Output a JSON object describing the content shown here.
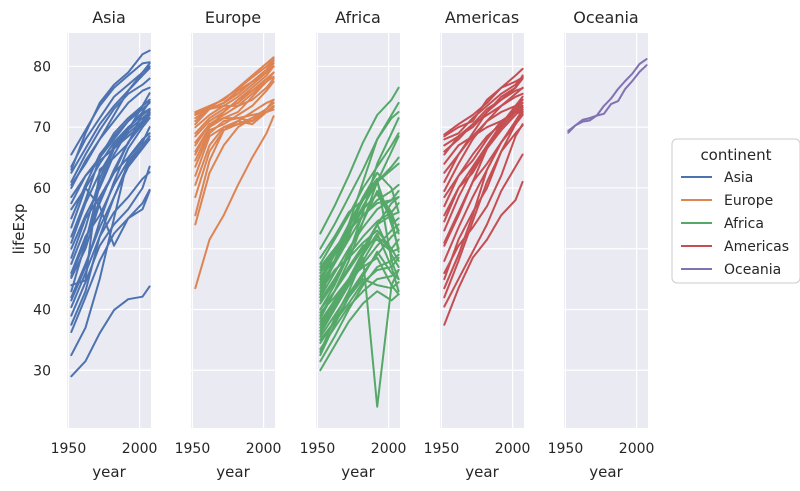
{
  "chart_data": {
    "type": "line",
    "facet_by": "continent",
    "xlabel": "year",
    "ylabel": "lifeExp",
    "xlim": [
      1949,
      2008
    ],
    "ylim": [
      20.5,
      85.5
    ],
    "xticks": [
      1950,
      2000
    ],
    "yticks": [
      30,
      40,
      50,
      60,
      70,
      80
    ],
    "legend": {
      "title": "continent",
      "position": "right",
      "entries": [
        "Asia",
        "Europe",
        "Africa",
        "Americas",
        "Oceania"
      ]
    },
    "panels": [
      {
        "title": "Asia",
        "color": "#4c72b0",
        "x": [
          1952,
          1962,
          1972,
          1982,
          1992,
          2002,
          2007
        ],
        "series": [
          [
            29,
            31.5,
            36.1,
            39.9,
            41.7,
            42.1,
            43.8
          ],
          [
            32.5,
            37,
            45,
            55,
            65,
            68,
            69
          ],
          [
            36.3,
            42,
            48,
            52.5,
            55,
            57.5,
            59.7
          ],
          [
            37.5,
            43,
            52,
            58.5,
            64,
            67,
            68.5
          ],
          [
            39,
            44.5,
            50.5,
            54,
            56.5,
            60,
            63.5
          ],
          [
            40.4,
            46,
            52,
            56,
            58.5,
            61.5,
            62.6
          ],
          [
            41.5,
            47,
            54.5,
            61,
            66.5,
            70,
            71.5
          ],
          [
            43,
            51,
            60.5,
            66.5,
            69.5,
            71.5,
            72.5
          ],
          [
            44,
            44.8,
            63,
            65,
            67.3,
            72.3,
            73
          ],
          [
            45.2,
            50,
            57.5,
            63,
            67.5,
            70.5,
            72
          ],
          [
            46,
            52,
            55.5,
            60.5,
            64.5,
            67,
            68.5
          ],
          [
            47.5,
            53.5,
            61.5,
            67,
            69.8,
            72.5,
            74.2
          ],
          [
            48.5,
            55,
            58.5,
            62.5,
            65,
            67.5,
            70
          ],
          [
            50,
            55.5,
            60,
            65.5,
            69.5,
            73.5,
            75.6
          ],
          [
            51,
            57.5,
            62.5,
            66.5,
            69,
            71,
            72.8
          ],
          [
            52,
            58,
            65,
            69,
            71.5,
            73.5,
            74.5
          ],
          [
            53.5,
            60,
            64,
            67.5,
            70,
            72,
            73
          ],
          [
            55,
            60.5,
            65.5,
            68.5,
            71,
            73,
            74
          ],
          [
            56.5,
            60,
            57,
            50.5,
            55,
            56.5,
            59.5
          ],
          [
            57.5,
            62,
            65,
            68,
            71,
            73.5,
            74.5
          ],
          [
            58.5,
            62,
            64.5,
            66.5,
            68.5,
            70.5,
            72.3
          ],
          [
            60,
            64.5,
            68,
            71,
            74,
            76,
            76.5
          ],
          [
            61,
            65.5,
            69.5,
            73,
            75.5,
            77,
            78
          ],
          [
            62.5,
            66.5,
            70.5,
            73.5,
            76,
            78.5,
            79.7
          ],
          [
            63.5,
            68,
            71.5,
            75,
            77,
            79,
            80
          ],
          [
            65.5,
            69.5,
            73.5,
            76.5,
            78.5,
            80.5,
            80.7
          ],
          [
            63,
            69,
            74,
            77,
            79,
            82,
            82.6
          ],
          [
            60.5,
            64,
            68,
            72,
            76,
            79,
            80.5
          ],
          [
            45.5,
            51.5,
            58,
            62.5,
            67.5,
            71,
            72.4
          ],
          [
            42,
            47.5,
            53.5,
            58.5,
            63.5,
            66.5,
            68
          ]
        ]
      },
      {
        "title": "Europe",
        "color": "#dd8452",
        "x": [
          1952,
          1962,
          1972,
          1982,
          1992,
          2002,
          2007
        ],
        "series": [
          [
            43.5,
            51.5,
            55.5,
            60.5,
            65,
            69,
            71.8
          ],
          [
            54,
            62.5,
            67,
            70,
            71.5,
            73,
            74
          ],
          [
            55.5,
            64.5,
            69.5,
            71,
            72.5,
            74,
            74.5
          ],
          [
            58.5,
            66,
            69.5,
            70.5,
            71.5,
            73,
            74
          ],
          [
            60.5,
            67,
            70,
            71,
            70.5,
            72.5,
            73.3
          ],
          [
            62,
            68.5,
            70,
            70.5,
            71,
            72.5,
            73.5
          ],
          [
            63.5,
            69,
            71,
            71.5,
            72,
            72.5,
            72.9
          ],
          [
            64.5,
            69.5,
            70.5,
            72,
            73.5,
            76,
            77.5
          ],
          [
            65.5,
            70,
            71.5,
            72.5,
            75,
            77.5,
            79
          ],
          [
            66,
            70,
            72.5,
            74.5,
            76,
            77.5,
            78.3
          ],
          [
            67,
            70.5,
            72,
            73.5,
            75.5,
            77.5,
            79
          ],
          [
            67.5,
            70.5,
            71.5,
            71.5,
            71,
            73,
            74.5
          ],
          [
            68.5,
            71,
            72.5,
            74.5,
            76.5,
            78.5,
            80
          ],
          [
            69,
            71.5,
            73,
            74,
            76,
            78,
            79
          ],
          [
            70,
            72,
            73.5,
            75,
            77,
            79,
            80
          ],
          [
            70.5,
            73,
            73.5,
            73.5,
            74.5,
            76.5,
            78
          ],
          [
            71,
            73,
            74,
            75.5,
            77.5,
            79,
            80
          ],
          [
            71.5,
            73,
            74,
            75.5,
            77.5,
            79,
            80.5
          ],
          [
            72,
            73,
            74,
            76,
            77.5,
            79.5,
            80.9
          ],
          [
            72.5,
            73.5,
            74.5,
            76.5,
            78.5,
            80.5,
            81.5
          ],
          [
            72.2,
            73.2,
            74.7,
            76.3,
            78.2,
            80,
            81.2
          ]
        ]
      },
      {
        "title": "Africa",
        "color": "#55a868",
        "x": [
          1952,
          1962,
          1972,
          1982,
          1992,
          2002,
          2007
        ],
        "series": [
          [
            30,
            34,
            38,
            41,
            43,
            41.5,
            42.5
          ],
          [
            31.5,
            35.5,
            40,
            44,
            47,
            48,
            49
          ],
          [
            32.5,
            37.5,
            42,
            45.5,
            49.5,
            46,
            45
          ],
          [
            33.5,
            37,
            40.5,
            43,
            45,
            45.5,
            46.5
          ],
          [
            34.5,
            38,
            41,
            44.5,
            46.5,
            47,
            48.5
          ],
          [
            35,
            38,
            42,
            45,
            44,
            43.5,
            44.5
          ],
          [
            36,
            40,
            44,
            48,
            52,
            50,
            48
          ],
          [
            37.5,
            41,
            44.5,
            49,
            52.5,
            47,
            43
          ],
          [
            38,
            41.5,
            45,
            49.5,
            54,
            49,
            47
          ],
          [
            39,
            43,
            47,
            50.5,
            51.5,
            49.5,
            50
          ],
          [
            40,
            43,
            46.5,
            50,
            54,
            55.5,
            56
          ],
          [
            41,
            44.5,
            49.5,
            54.5,
            59.5,
            56,
            52.5
          ],
          [
            42,
            46,
            50,
            53.5,
            56.5,
            58,
            59.5
          ],
          [
            43,
            46.5,
            48.5,
            51,
            53,
            50,
            51.5
          ],
          [
            44,
            48,
            52.5,
            56.5,
            59,
            55.5,
            53
          ],
          [
            45.5,
            48,
            52.5,
            57,
            61,
            63,
            64
          ],
          [
            46,
            49,
            52.5,
            57,
            61,
            63.5,
            65
          ],
          [
            47.5,
            51.5,
            55.5,
            60,
            63.5,
            67,
            69
          ],
          [
            48.5,
            52,
            56,
            58,
            61,
            54,
            50
          ],
          [
            50,
            54,
            58.5,
            63,
            68,
            71.5,
            72.5
          ],
          [
            52.5,
            57,
            62,
            67.5,
            72,
            74.5,
            76.5
          ],
          [
            42,
            48,
            54,
            61,
            68,
            72,
            74
          ],
          [
            40,
            44,
            49,
            56,
            64,
            69,
            71.5
          ],
          [
            38.5,
            43,
            48,
            54.5,
            61,
            66,
            68.5
          ],
          [
            36.5,
            40.5,
            44,
            49,
            54,
            57.5,
            58.5
          ],
          [
            44.5,
            49,
            53.5,
            58,
            61,
            54,
            55
          ],
          [
            39.5,
            42,
            45,
            47,
            48.5,
            44,
            42.5
          ],
          [
            41.5,
            45,
            49,
            52,
            54.5,
            56,
            57.5
          ],
          [
            43.5,
            47.5,
            51.5,
            55.5,
            58,
            59.5,
            60.5
          ],
          [
            37,
            40.5,
            44,
            47.5,
            50.5,
            53,
            54
          ],
          [
            35.5,
            39,
            42.5,
            46,
            49,
            52,
            53
          ],
          [
            42.5,
            48,
            52,
            58.5,
            61.5,
            48,
            45
          ],
          [
            47,
            50,
            53,
            55.5,
            57.5,
            58,
            58.5
          ],
          [
            33,
            38.5,
            43,
            48.5,
            24,
            44,
            46.5
          ],
          [
            45,
            49.5,
            54,
            58.5,
            62.5,
            60,
            56
          ],
          [
            46.5,
            49.5,
            53,
            56.5,
            59,
            55,
            49.5
          ]
        ]
      },
      {
        "title": "Americas",
        "color": "#c44e52",
        "x": [
          1952,
          1962,
          1972,
          1982,
          1992,
          2002,
          2007
        ],
        "series": [
          [
            37.5,
            43.5,
            48.5,
            51.5,
            55.5,
            58,
            61
          ],
          [
            40.5,
            45,
            49.5,
            54,
            59.5,
            63.5,
            65.5
          ],
          [
            42,
            48,
            54.5,
            61,
            66,
            69,
            70.3
          ],
          [
            43.5,
            49,
            55.5,
            63,
            67.5,
            70.5,
            72
          ],
          [
            45,
            51.5,
            56,
            60,
            66,
            70.5,
            72.5
          ],
          [
            46,
            50.5,
            53.5,
            57,
            62,
            68.5,
            70.5
          ],
          [
            48,
            53.5,
            58.5,
            63,
            67.5,
            70.5,
            72.5
          ],
          [
            50.5,
            55.5,
            61,
            66.5,
            70,
            72.5,
            73.5
          ],
          [
            51,
            56,
            61,
            64,
            67.5,
            71,
            72.9
          ],
          [
            53,
            58.5,
            63,
            66.5,
            69.5,
            72,
            73.2
          ],
          [
            54.5,
            60,
            63.5,
            67,
            70.5,
            73,
            74.5
          ],
          [
            55.5,
            60,
            62.5,
            66.5,
            70,
            72.5,
            74
          ],
          [
            57,
            62,
            64.5,
            68,
            71,
            72.5,
            72.6
          ],
          [
            58.5,
            62,
            65.5,
            68.5,
            70.5,
            73.5,
            75
          ],
          [
            59.5,
            64,
            68,
            71,
            73.5,
            75.5,
            76.5
          ],
          [
            61,
            65.5,
            68.5,
            71,
            72.5,
            73.5,
            74.5
          ],
          [
            62.5,
            65.5,
            69,
            72.5,
            75,
            76.5,
            78.5
          ],
          [
            64,
            67,
            68.5,
            70,
            71,
            72.5,
            72.2
          ],
          [
            65.5,
            68.5,
            70,
            72.5,
            74.5,
            76.5,
            78
          ],
          [
            66,
            68,
            70.5,
            73,
            74.5,
            76,
            76.4
          ],
          [
            68,
            69,
            71.5,
            73.5,
            75.5,
            77,
            78.3
          ],
          [
            68.5,
            70,
            71,
            74.5,
            76.5,
            78.5,
            79.6
          ],
          [
            68.8,
            70.5,
            72,
            74,
            76.5,
            77.5,
            78.2
          ],
          [
            67,
            68.5,
            70.5,
            72,
            73.5,
            75,
            75.5
          ]
        ]
      },
      {
        "title": "Oceania",
        "color": "#8172b3",
        "x": [
          1952,
          1957,
          1962,
          1967,
          1972,
          1977,
          1982,
          1987,
          1992,
          1997,
          2002,
          2007
        ],
        "series": [
          [
            69.1,
            70.3,
            70.9,
            71.1,
            71.9,
            73.5,
            74.7,
            76.3,
            77.6,
            78.8,
            80.4,
            81.2
          ],
          [
            69.4,
            70.3,
            71.2,
            71.5,
            71.9,
            72.2,
            73.8,
            74.3,
            76.3,
            77.6,
            79.1,
            80.2
          ]
        ]
      }
    ]
  }
}
